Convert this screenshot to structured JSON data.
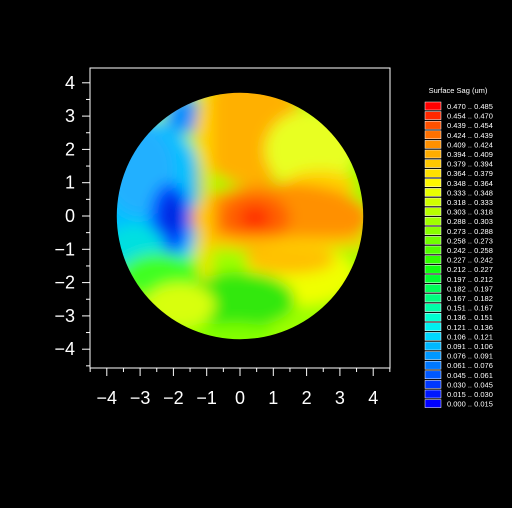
{
  "chart_data": {
    "type": "heatmap",
    "legend_title": "Surface Sag (um)",
    "legend_position": "right",
    "grid": false,
    "xlim": [
      -4.5,
      4.5
    ],
    "ylim": [
      -4.5,
      4.5
    ],
    "x_ticks": [
      "−4",
      "−3",
      "−2",
      "−1",
      "0",
      "1",
      "2",
      "3",
      "4"
    ],
    "y_ticks": [
      "4",
      "3",
      "2",
      "1",
      "0",
      "−1",
      "−2",
      "−3",
      "−4"
    ],
    "aperture": {
      "center_x": 0,
      "center_y": 0,
      "radius": 3.7
    },
    "colorscale": [
      {
        "range": "0.470 .. 0.485",
        "color": "#ff0000"
      },
      {
        "range": "0.454 .. 0.470",
        "color": "#ff2800"
      },
      {
        "range": "0.439 .. 0.454",
        "color": "#ff5000"
      },
      {
        "range": "0.424 .. 0.439",
        "color": "#ff7000"
      },
      {
        "range": "0.409 .. 0.424",
        "color": "#ff9000"
      },
      {
        "range": "0.394 .. 0.409",
        "color": "#ffac00"
      },
      {
        "range": "0.379 .. 0.394",
        "color": "#ffc800"
      },
      {
        "range": "0.364 .. 0.379",
        "color": "#ffe000"
      },
      {
        "range": "0.348 .. 0.364",
        "color": "#fff800"
      },
      {
        "range": "0.333 .. 0.348",
        "color": "#e8ff00"
      },
      {
        "range": "0.318 .. 0.333",
        "color": "#d0ff00"
      },
      {
        "range": "0.303 .. 0.318",
        "color": "#b8ff00"
      },
      {
        "range": "0.288 .. 0.303",
        "color": "#a0ff00"
      },
      {
        "range": "0.273 .. 0.288",
        "color": "#88ff00"
      },
      {
        "range": "0.258 .. 0.273",
        "color": "#70ff00"
      },
      {
        "range": "0.242 .. 0.258",
        "color": "#50ff00"
      },
      {
        "range": "0.227 .. 0.242",
        "color": "#30ff00"
      },
      {
        "range": "0.212 .. 0.227",
        "color": "#10ff10"
      },
      {
        "range": "0.197 .. 0.212",
        "color": "#00ff30"
      },
      {
        "range": "0.182 .. 0.197",
        "color": "#00ff58"
      },
      {
        "range": "0.167 .. 0.182",
        "color": "#00ff80"
      },
      {
        "range": "0.151 .. 0.167",
        "color": "#00ffa8"
      },
      {
        "range": "0.136 .. 0.151",
        "color": "#00ffd0"
      },
      {
        "range": "0.121 .. 0.136",
        "color": "#00f0f0"
      },
      {
        "range": "0.106 .. 0.121",
        "color": "#00d8ff"
      },
      {
        "range": "0.091 .. 0.106",
        "color": "#00b8ff"
      },
      {
        "range": "0.076 .. 0.091",
        "color": "#0098ff"
      },
      {
        "range": "0.061 .. 0.076",
        "color": "#0078ff"
      },
      {
        "range": "0.045 .. 0.061",
        "color": "#0058ff"
      },
      {
        "range": "0.030 .. 0.045",
        "color": "#0038ff"
      },
      {
        "range": "0.015 .. 0.030",
        "color": "#0018ff"
      },
      {
        "range": "0.000 .. 0.015",
        "color": "#0000ff"
      }
    ],
    "features": [
      {
        "type": "ridge",
        "orientation": "vertical",
        "x": -1.0,
        "value": 0.36
      },
      {
        "type": "ridge",
        "orientation": "horizontal",
        "y": -0.8,
        "value": 0.36
      },
      {
        "type": "peak",
        "x": 0.5,
        "y": 0.0,
        "value": 0.43
      },
      {
        "type": "valley",
        "x": -2.1,
        "y": 0.0,
        "value": 0.02
      },
      {
        "type": "plateau",
        "x": 2.5,
        "y": 2.0,
        "value": 0.34
      },
      {
        "type": "plateau",
        "x": 0.0,
        "y": -2.5,
        "value": 0.22
      }
    ]
  }
}
